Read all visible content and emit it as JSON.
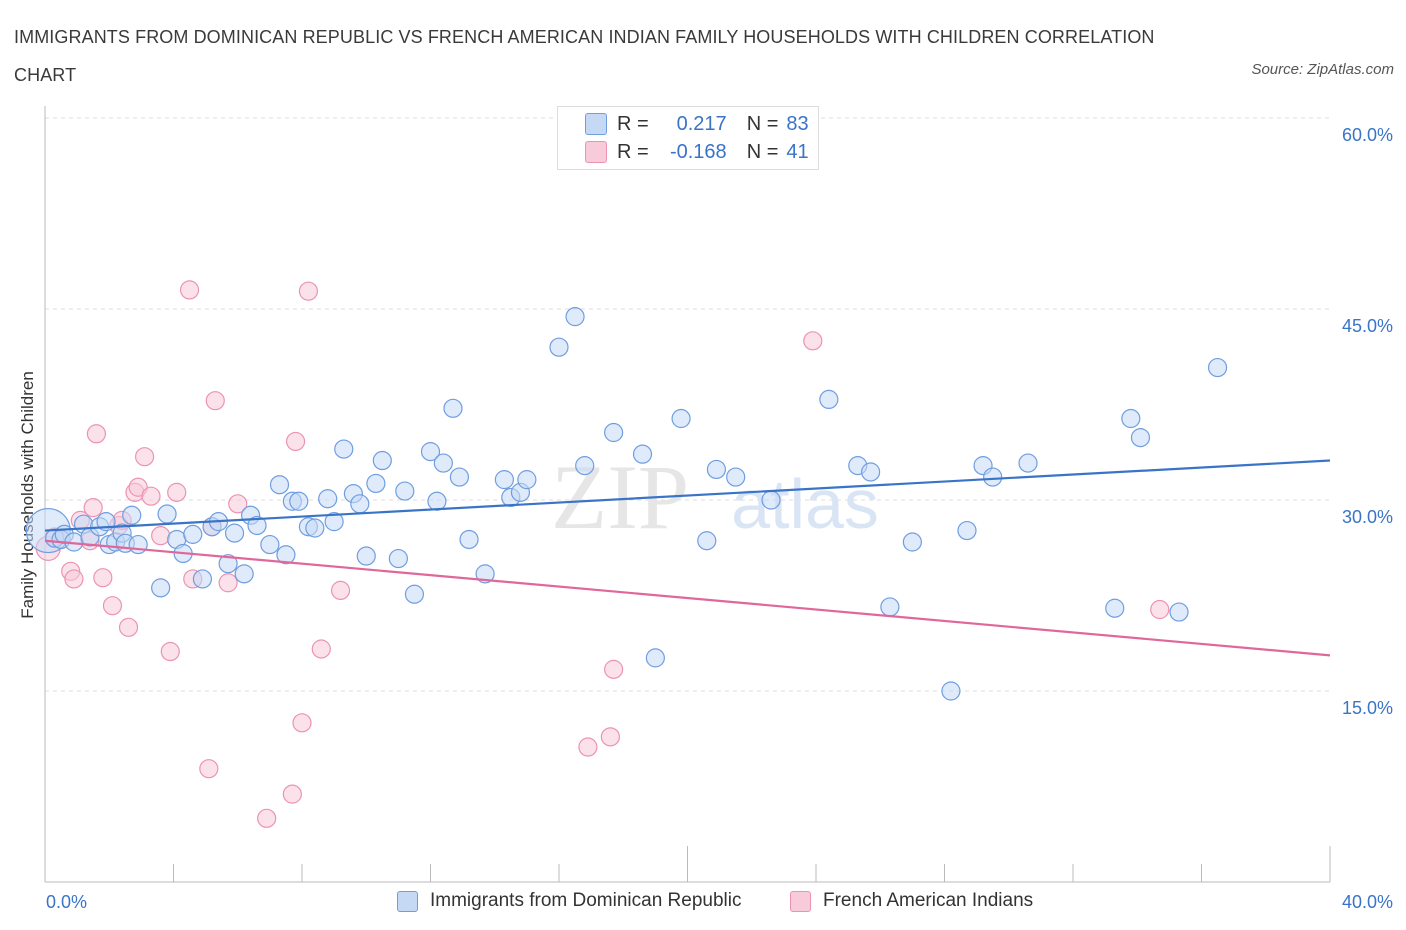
{
  "header": {
    "title": "IMMIGRANTS FROM DOMINICAN REPUBLIC VS FRENCH AMERICAN INDIAN FAMILY HOUSEHOLDS WITH CHILDREN CORRELATION CHART",
    "source": "Source: ZipAtlas.com"
  },
  "legend": {
    "r_label": "R =",
    "n_label": "N =",
    "blue_r": "0.217",
    "blue_n": "83",
    "pink_r": "-0.168",
    "pink_n": "41"
  },
  "watermark": {
    "zip": "ZIP",
    "atlas": "atlas"
  },
  "colors": {
    "blue": "#3a74c7",
    "blue_fill": "#c5d9f5",
    "blue_stroke": "#6f9ee0",
    "pink": "#e0679a",
    "pink_fill": "#f7cbd9",
    "pink_stroke": "#ec93b4",
    "tick_text": "#3a74c7"
  },
  "chart_data": {
    "type": "scatter",
    "title": "IMMIGRANTS FROM DOMINICAN REPUBLIC VS FRENCH AMERICAN INDIAN FAMILY HOUSEHOLDS WITH CHILDREN CORRELATION CHART",
    "xlabel": "",
    "ylabel": "Family Households with Children",
    "xlim": [
      0,
      40
    ],
    "ylim": [
      0,
      60
    ],
    "x_tick_labels": [
      "0.0%",
      "40.0%"
    ],
    "y_ticks": [
      15,
      30,
      45,
      60
    ],
    "y_tick_labels": [
      "15.0%",
      "30.0%",
      "45.0%",
      "60.0%"
    ],
    "grid": true,
    "legend_position": "top-center",
    "series": [
      {
        "name": "Immigrants from Dominican Republic",
        "color": "#3a74c7",
        "r": 0.217,
        "n": 83,
        "trend": [
          [
            0,
            27.6
          ],
          [
            40,
            33.1
          ]
        ],
        "points": [
          [
            0.1,
            27.6,
            "big"
          ],
          [
            0.3,
            27.0
          ],
          [
            0.5,
            26.9
          ],
          [
            0.6,
            27.3
          ],
          [
            0.9,
            26.7
          ],
          [
            1.2,
            28.1
          ],
          [
            1.4,
            27.1
          ],
          [
            1.7,
            27.9
          ],
          [
            1.9,
            28.3
          ],
          [
            2.0,
            26.5
          ],
          [
            2.2,
            26.7
          ],
          [
            2.4,
            27.4
          ],
          [
            2.5,
            26.6
          ],
          [
            2.7,
            28.8
          ],
          [
            2.9,
            26.5
          ],
          [
            3.6,
            23.1
          ],
          [
            3.8,
            28.9
          ],
          [
            4.1,
            26.9
          ],
          [
            4.3,
            25.8
          ],
          [
            4.6,
            27.3
          ],
          [
            4.9,
            23.8
          ],
          [
            5.2,
            27.9
          ],
          [
            5.4,
            28.3
          ],
          [
            5.7,
            25.0
          ],
          [
            5.9,
            27.4
          ],
          [
            6.2,
            24.2
          ],
          [
            6.4,
            28.8
          ],
          [
            6.6,
            28.0
          ],
          [
            7.0,
            26.5
          ],
          [
            7.3,
            31.2
          ],
          [
            7.5,
            25.7
          ],
          [
            7.7,
            29.9
          ],
          [
            7.9,
            29.9
          ],
          [
            8.2,
            27.9
          ],
          [
            8.4,
            27.8
          ],
          [
            8.8,
            30.1
          ],
          [
            9.0,
            28.3
          ],
          [
            9.3,
            34.0
          ],
          [
            9.6,
            30.5
          ],
          [
            9.8,
            29.7
          ],
          [
            10.0,
            25.6
          ],
          [
            10.3,
            31.3
          ],
          [
            10.5,
            33.1
          ],
          [
            11.0,
            25.4
          ],
          [
            11.2,
            30.7
          ],
          [
            11.5,
            22.6
          ],
          [
            12.0,
            33.8
          ],
          [
            12.2,
            29.9
          ],
          [
            12.4,
            32.9
          ],
          [
            12.7,
            37.2
          ],
          [
            12.9,
            31.8
          ],
          [
            13.2,
            26.9
          ],
          [
            13.7,
            24.2
          ],
          [
            14.3,
            31.6
          ],
          [
            14.5,
            30.2
          ],
          [
            14.8,
            30.6
          ],
          [
            15.0,
            31.6
          ],
          [
            16.0,
            42.0
          ],
          [
            16.5,
            44.4
          ],
          [
            16.8,
            32.7
          ],
          [
            17.7,
            35.3
          ],
          [
            18.0,
            59.6,
            "big"
          ],
          [
            18.6,
            33.6
          ],
          [
            19.0,
            17.6
          ],
          [
            19.8,
            36.4
          ],
          [
            20.6,
            26.8
          ],
          [
            20.9,
            32.4
          ],
          [
            21.5,
            31.8
          ],
          [
            22.6,
            30.0
          ],
          [
            24.4,
            37.9
          ],
          [
            25.3,
            32.7
          ],
          [
            25.7,
            32.2
          ],
          [
            26.3,
            21.6
          ],
          [
            27.0,
            26.7
          ],
          [
            28.2,
            15.0
          ],
          [
            28.7,
            27.6
          ],
          [
            29.2,
            32.7
          ],
          [
            29.5,
            31.8
          ],
          [
            30.6,
            32.9
          ],
          [
            33.3,
            21.5
          ],
          [
            33.8,
            36.4
          ],
          [
            34.1,
            34.9
          ],
          [
            35.3,
            21.2
          ],
          [
            36.5,
            40.4
          ]
        ]
      },
      {
        "name": "French American Indians",
        "color": "#e0679a",
        "r": -0.168,
        "n": 41,
        "trend": [
          [
            0,
            26.8
          ],
          [
            40,
            17.8
          ]
        ],
        "points": [
          [
            0.1,
            26.2,
            "big"
          ],
          [
            0.3,
            27.1
          ],
          [
            0.5,
            26.9
          ],
          [
            0.8,
            24.4
          ],
          [
            0.9,
            23.8
          ],
          [
            1.1,
            28.4
          ],
          [
            1.4,
            26.8
          ],
          [
            1.5,
            29.4
          ],
          [
            1.6,
            35.2
          ],
          [
            1.8,
            23.9
          ],
          [
            2.1,
            21.7
          ],
          [
            2.3,
            28.0
          ],
          [
            2.4,
            28.4
          ],
          [
            2.6,
            20.0
          ],
          [
            2.8,
            30.6
          ],
          [
            2.9,
            31.0
          ],
          [
            3.1,
            33.4
          ],
          [
            3.3,
            30.3
          ],
          [
            3.6,
            27.2
          ],
          [
            3.9,
            18.1
          ],
          [
            4.1,
            30.6
          ],
          [
            4.5,
            46.5
          ],
          [
            4.6,
            23.8
          ],
          [
            5.1,
            8.9
          ],
          [
            5.2,
            27.9
          ],
          [
            5.3,
            37.8
          ],
          [
            5.7,
            23.5
          ],
          [
            6.0,
            29.7
          ],
          [
            6.9,
            5.0
          ],
          [
            7.7,
            6.9
          ],
          [
            7.8,
            34.6
          ],
          [
            8.0,
            12.5
          ],
          [
            8.2,
            46.4
          ],
          [
            8.6,
            18.3
          ],
          [
            9.2,
            22.9
          ],
          [
            16.9,
            10.6
          ],
          [
            17.7,
            16.7
          ],
          [
            17.6,
            11.4
          ],
          [
            23.9,
            42.5
          ],
          [
            34.7,
            21.4
          ]
        ]
      }
    ]
  },
  "bottom_legend": {
    "blue_label": "Immigrants from Dominican Republic",
    "pink_label": "French American Indians"
  }
}
